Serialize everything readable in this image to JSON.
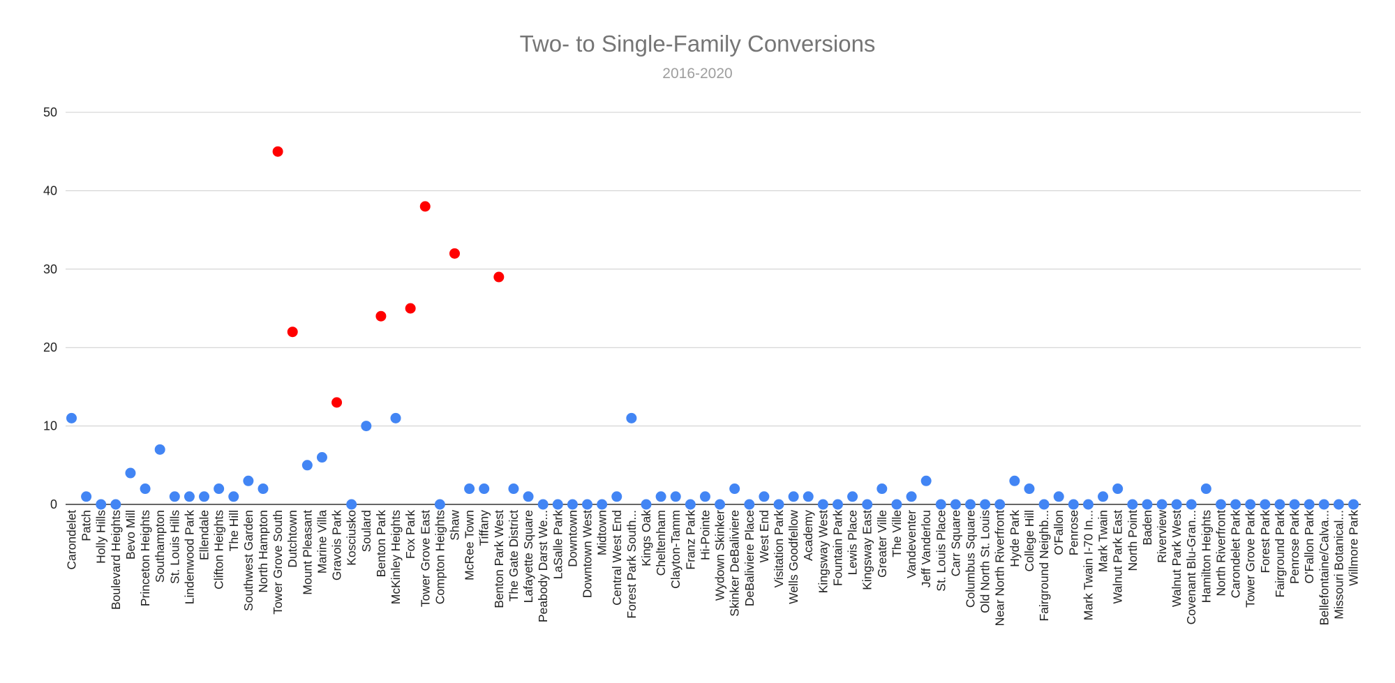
{
  "chart_data": {
    "type": "scatter",
    "title": "Two- to Single-Family Conversions",
    "subtitle": "2016-2020",
    "xlabel": "",
    "ylabel": "",
    "ylim": [
      0,
      50
    ],
    "yticks": [
      0,
      10,
      20,
      30,
      40,
      50
    ],
    "grid": true,
    "legend": "none",
    "colors": {
      "normal": "#4285f4",
      "highlight": "#ff0000",
      "grid": "#cccccc",
      "axis": "#333333"
    },
    "categories": [
      "Carondelet",
      "Patch",
      "Holly Hills",
      "Boulevard Heights",
      "Bevo Mill",
      "Princeton Heights",
      "Southampton",
      "St. Louis Hills",
      "Lindenwood Park",
      "Ellendale",
      "Clifton Heights",
      "The Hill",
      "Southwest Garden",
      "North Hampton",
      "Tower Grove South",
      "Dutchtown",
      "Mount Pleasant",
      "Marine Villa",
      "Gravois Park",
      "Kosciusko",
      "Soulard",
      "Benton Park",
      "McKinley Heights",
      "Fox Park",
      "Tower Grove East",
      "Compton Heights",
      "Shaw",
      "McRee Town",
      "Tiffany",
      "Benton Park West",
      "The Gate District",
      "Lafayette Square",
      "Peabody Darst We...",
      "LaSalle Park",
      "Downtown",
      "Downtown West",
      "Midtown",
      "Central West End",
      "Forest Park South...",
      "Kings Oak",
      "Cheltenham",
      "Clayton-Tamm",
      "Franz Park",
      "Hi-Pointe",
      "Wydown Skinker",
      "Skinker DeBaliviere",
      "DeBaliviere Place",
      "West End",
      "Visitation Park",
      "Wells Goodfellow",
      "Academy",
      "Kingsway West",
      "Fountain Park",
      "Lewis Place",
      "Kingsway East",
      "Greater Ville",
      "The Ville",
      "Vandeventer",
      "Jeff Vanderlou",
      "St. Louis Place",
      "Carr Square",
      "Columbus Square",
      "Old North St. Louis",
      "Near North Riverfront",
      "Hyde Park",
      "College Hill",
      "Fairground Neighb...",
      "O'Fallon",
      "Penrose",
      "Mark Twain I-70 In...",
      "Mark Twain",
      "Walnut Park East",
      "North Point",
      "Baden",
      "Riverview",
      "Walnut Park West",
      "Covenant Blu-Gran...",
      "Hamilton Heights",
      "North Riverfront",
      "Carondelet Park",
      "Tower Grove Park",
      "Forest Park",
      "Fairground Park",
      "Penrose Park",
      "O'Fallon Park",
      "Bellefontaine/Calva...",
      "Missouri Botanical...",
      "Willmore Park"
    ],
    "values": [
      11,
      1,
      0,
      0,
      4,
      2,
      7,
      1,
      1,
      1,
      2,
      1,
      3,
      2,
      45,
      22,
      5,
      6,
      13,
      0,
      10,
      24,
      11,
      25,
      38,
      0,
      32,
      2,
      2,
      29,
      2,
      1,
      0,
      0,
      0,
      0,
      0,
      1,
      11,
      0,
      1,
      1,
      0,
      1,
      0,
      2,
      0,
      1,
      0,
      1,
      1,
      0,
      0,
      1,
      0,
      2,
      0,
      1,
      3,
      0,
      0,
      0,
      0,
      0,
      3,
      2,
      0,
      1,
      0,
      0,
      1,
      2,
      0,
      0,
      0,
      0,
      0,
      2,
      0,
      0,
      0,
      0,
      0,
      0,
      0,
      0,
      0,
      0
    ],
    "highlighted": [
      "Tower Grove South",
      "Dutchtown",
      "Gravois Park",
      "Benton Park",
      "Fox Park",
      "Tower Grove East",
      "Shaw",
      "Benton Park West"
    ]
  }
}
